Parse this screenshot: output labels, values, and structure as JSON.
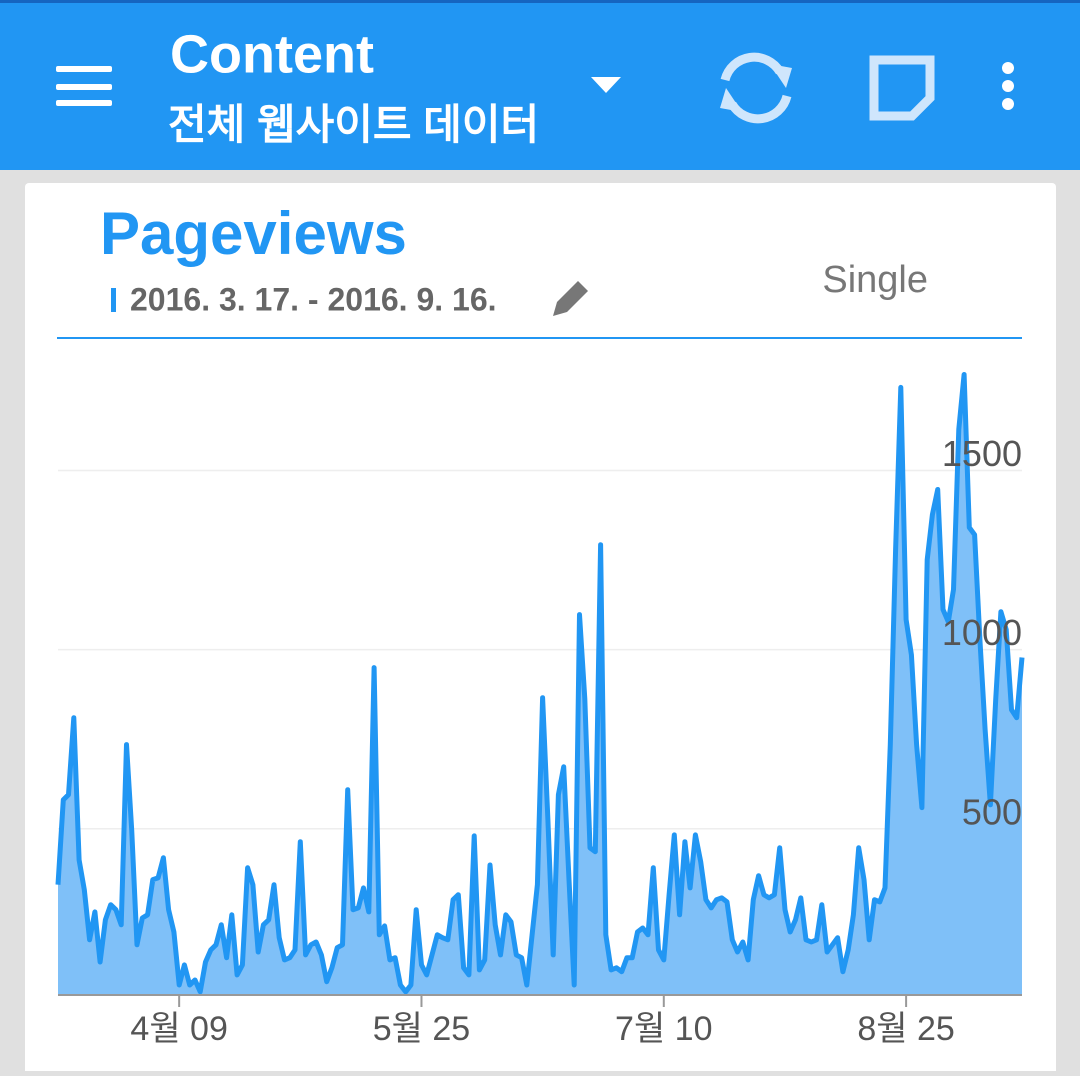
{
  "header": {
    "title": "Content",
    "subtitle": "전체 웹사이트 데이터"
  },
  "card": {
    "title": "Pageviews",
    "date_range": "2016. 3. 17. - 2016. 9. 16.",
    "mode": "Single"
  },
  "chart_data": {
    "type": "area",
    "categories": [
      null,
      null,
      null,
      null,
      null,
      null,
      null,
      null,
      null,
      null,
      null,
      null,
      null,
      null,
      null,
      null,
      null,
      null,
      null,
      null,
      null,
      null,
      null,
      "4월 09",
      null,
      null,
      null,
      null,
      null,
      null,
      null,
      null,
      null,
      null,
      null,
      null,
      null,
      null,
      null,
      null,
      null,
      null,
      null,
      null,
      null,
      null,
      null,
      null,
      null,
      null,
      null,
      null,
      null,
      null,
      null,
      null,
      null,
      null,
      null,
      null,
      null,
      null,
      null,
      null,
      null,
      null,
      null,
      null,
      null,
      "5월 25",
      null,
      null,
      null,
      null,
      null,
      null,
      null,
      null,
      null,
      null,
      null,
      null,
      null,
      null,
      null,
      null,
      null,
      null,
      null,
      null,
      null,
      null,
      null,
      null,
      null,
      null,
      null,
      null,
      null,
      null,
      null,
      null,
      null,
      null,
      null,
      null,
      null,
      null,
      null,
      null,
      null,
      null,
      null,
      null,
      null,
      "7월 10",
      null,
      null,
      null,
      null,
      null,
      null,
      null,
      null,
      null,
      null,
      null,
      null,
      null,
      null,
      null,
      null,
      null,
      null,
      null,
      null,
      null,
      null,
      null,
      null,
      null,
      null,
      null,
      null,
      null,
      null,
      null,
      null,
      null,
      null,
      null,
      null,
      null,
      null,
      null,
      null,
      null,
      null,
      null,
      null,
      null,
      "8월 25",
      null,
      null,
      null,
      null,
      null,
      null,
      null,
      null,
      null,
      null,
      null,
      null,
      null,
      null,
      null,
      null,
      null,
      null,
      null,
      null,
      null,
      null
    ],
    "values": [
      344,
      581,
      595,
      810,
      413,
      330,
      190,
      268,
      128,
      246,
      288,
      274,
      232,
      735,
      497,
      176,
      251,
      260,
      358,
      363,
      419,
      274,
      212,
      64,
      120,
      64,
      78,
      45,
      128,
      162,
      176,
      232,
      140,
      260,
      92,
      120,
      391,
      344,
      156,
      232,
      246,
      344,
      196,
      134,
      140,
      162,
      464,
      148,
      176,
      184,
      148,
      73,
      112,
      168,
      176,
      609,
      274,
      279,
      335,
      268,
      950,
      204,
      229,
      134,
      140,
      64,
      45,
      64,
      274,
      120,
      92,
      148,
      204,
      196,
      190,
      302,
      316,
      112,
      92,
      480,
      106,
      134,
      399,
      232,
      148,
      260,
      240,
      148,
      140,
      64,
      204,
      344,
      866,
      525,
      148,
      595,
      673,
      358,
      64,
      1098,
      863,
      447,
      436,
      1293,
      204,
      106,
      112,
      101,
      140,
      140,
      212,
      223,
      204,
      391,
      162,
      134,
      316,
      483,
      260,
      464,
      335,
      483,
      408,
      302,
      279,
      302,
      307,
      296,
      190,
      156,
      184,
      134,
      302,
      369,
      316,
      307,
      316,
      447,
      274,
      212,
      246,
      307,
      190,
      184,
      190,
      288,
      156,
      176,
      196,
      101,
      162,
      260,
      447,
      358,
      190,
      302,
      296,
      335,
      735,
      1279,
      1732,
      1084,
      986,
      735,
      559,
      1251,
      1377,
      1447,
      1112,
      1078,
      1168,
      1615,
      1768,
      1341,
      1321,
      1028,
      777,
      567,
      860,
      1106,
      1056,
      832,
      810,
      978
    ],
    "color": "#2196f3",
    "area_color": "#7fc0f8",
    "ylim": [
      36,
      1870
    ],
    "yticks": [
      500,
      1000,
      1500
    ],
    "grid": true
  }
}
